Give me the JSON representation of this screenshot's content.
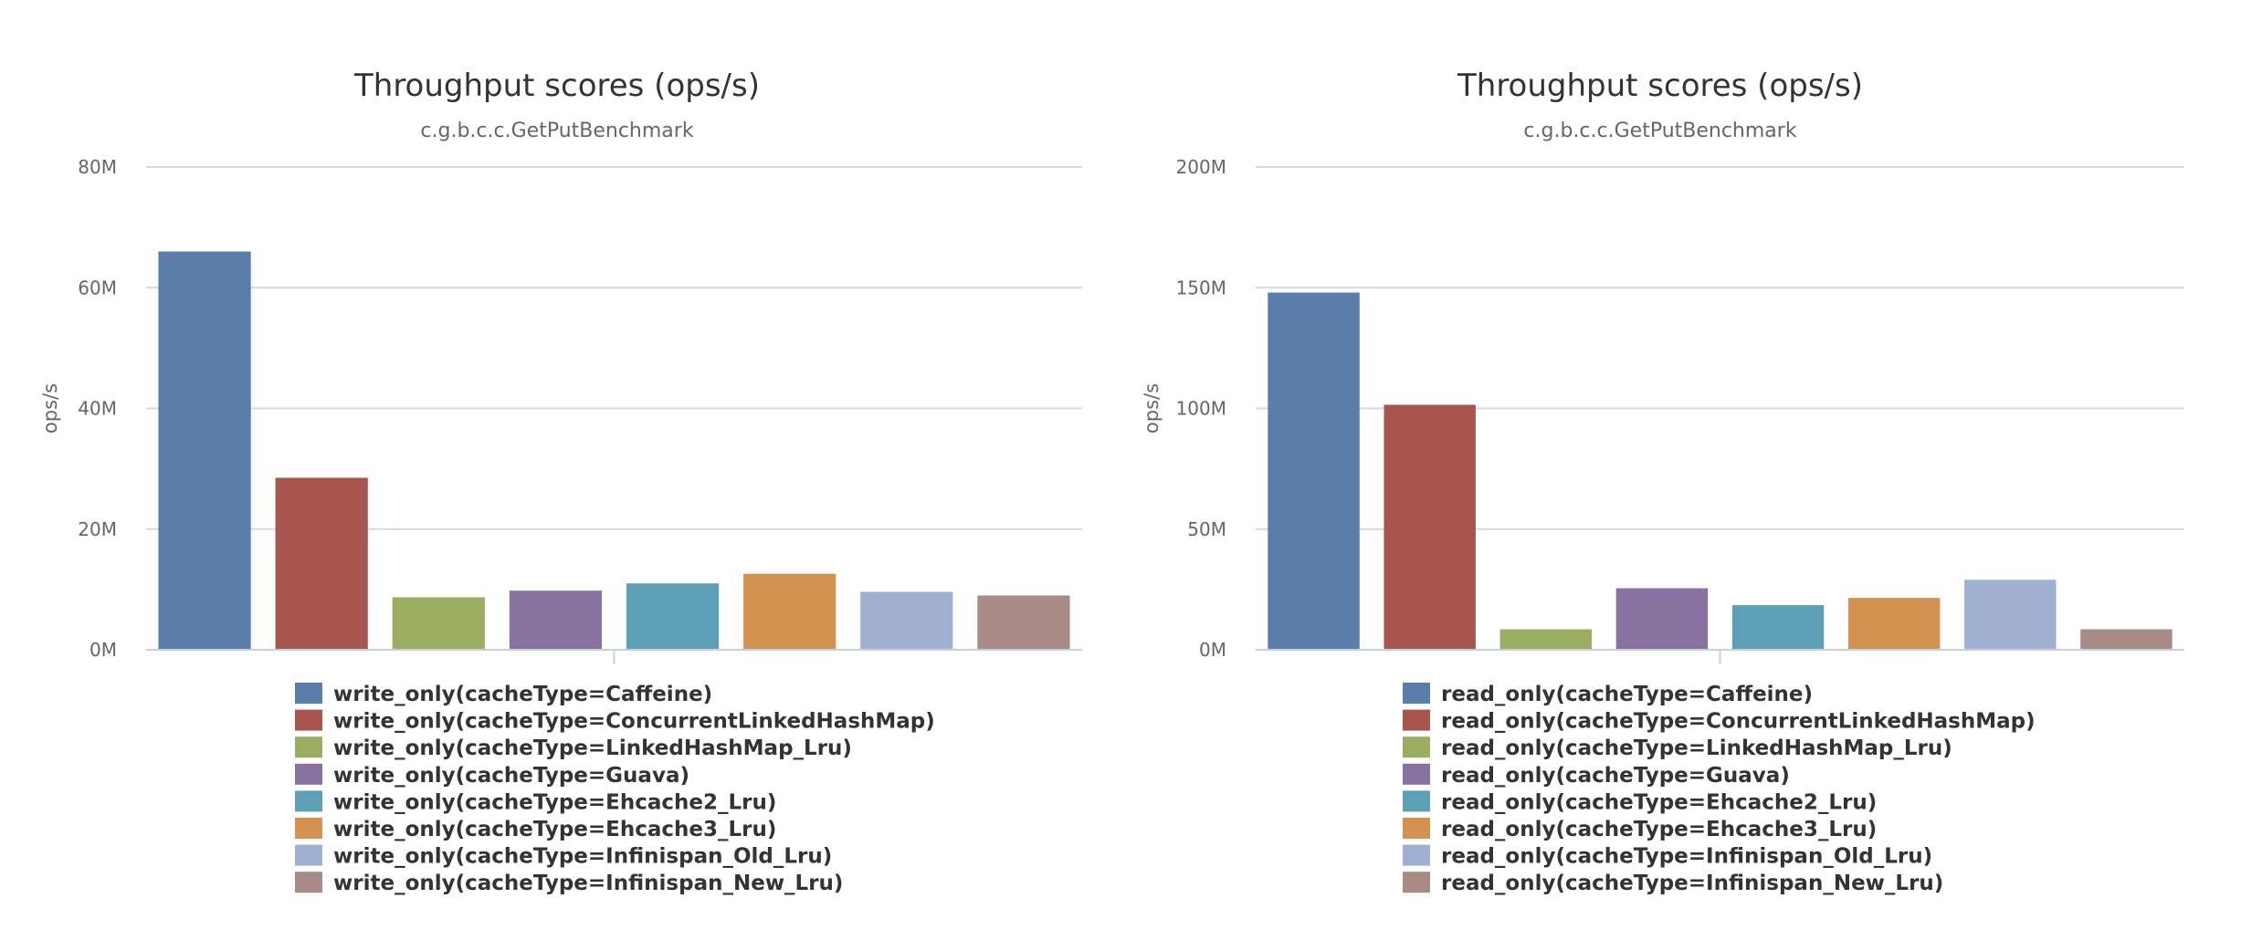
{
  "chart_data": [
    {
      "type": "bar",
      "title": "Throughput scores (ops/s)",
      "subtitle": "c.g.b.c.c.GetPutBenchmark",
      "ylabel": "ops/s",
      "xlabel": "",
      "ylim": [
        0,
        80000000
      ],
      "yticks": [
        {
          "value": 0,
          "label": "0M"
        },
        {
          "value": 20000000,
          "label": "20M"
        },
        {
          "value": 40000000,
          "label": "40M"
        },
        {
          "value": 60000000,
          "label": "60M"
        },
        {
          "value": 80000000,
          "label": "80M"
        }
      ],
      "grid": true,
      "legend_position": "bottom",
      "series": [
        {
          "name": "write_only(cacheType=Caffeine)",
          "value": 66000000,
          "color": "#5b7daa"
        },
        {
          "name": "write_only(cacheType=ConcurrentLinkedHashMap)",
          "value": 28500000,
          "color": "#a8554f"
        },
        {
          "name": "write_only(cacheType=LinkedHashMap_Lru)",
          "value": 8700000,
          "color": "#9aad60"
        },
        {
          "name": "write_only(cacheType=Guava)",
          "value": 9800000,
          "color": "#8772a0"
        },
        {
          "name": "write_only(cacheType=Ehcache2_Lru)",
          "value": 11000000,
          "color": "#5d9fb4"
        },
        {
          "name": "write_only(cacheType=Ehcache3_Lru)",
          "value": 12600000,
          "color": "#d49252"
        },
        {
          "name": "write_only(cacheType=Infinispan_Old_Lru)",
          "value": 9600000,
          "color": "#a0b0d2"
        },
        {
          "name": "write_only(cacheType=Infinispan_New_Lru)",
          "value": 9000000,
          "color": "#a88a86"
        }
      ]
    },
    {
      "type": "bar",
      "title": "Throughput scores (ops/s)",
      "subtitle": "c.g.b.c.c.GetPutBenchmark",
      "ylabel": "ops/s",
      "xlabel": "",
      "ylim": [
        0,
        200000000
      ],
      "yticks": [
        {
          "value": 0,
          "label": "0M"
        },
        {
          "value": 50000000,
          "label": "50M"
        },
        {
          "value": 100000000,
          "label": "100M"
        },
        {
          "value": 150000000,
          "label": "150M"
        },
        {
          "value": 200000000,
          "label": "200M"
        }
      ],
      "grid": true,
      "legend_position": "bottom",
      "series": [
        {
          "name": "read_only(cacheType=Caffeine)",
          "value": 148000000,
          "color": "#5b7daa"
        },
        {
          "name": "read_only(cacheType=ConcurrentLinkedHashMap)",
          "value": 101500000,
          "color": "#a8554f"
        },
        {
          "name": "read_only(cacheType=LinkedHashMap_Lru)",
          "value": 8500000,
          "color": "#9aad60"
        },
        {
          "name": "read_only(cacheType=Guava)",
          "value": 25500000,
          "color": "#8772a0"
        },
        {
          "name": "read_only(cacheType=Ehcache2_Lru)",
          "value": 18500000,
          "color": "#5d9fb4"
        },
        {
          "name": "read_only(cacheType=Ehcache3_Lru)",
          "value": 21500000,
          "color": "#d49252"
        },
        {
          "name": "read_only(cacheType=Infinispan_Old_Lru)",
          "value": 29000000,
          "color": "#a0b0d2"
        },
        {
          "name": "read_only(cacheType=Infinispan_New_Lru)",
          "value": 8500000,
          "color": "#a88a86"
        }
      ]
    }
  ]
}
